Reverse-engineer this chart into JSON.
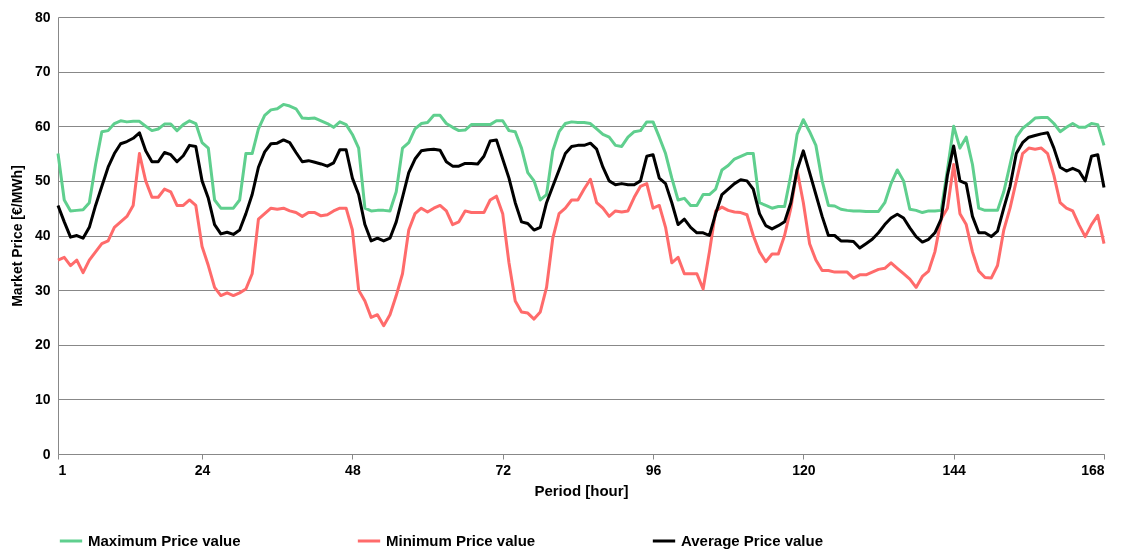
{
  "chart_data": {
    "type": "line",
    "xlabel": "Period [hour]",
    "ylabel": "Market Price [€/MWh]",
    "x": [
      1,
      2,
      3,
      4,
      5,
      6,
      7,
      8,
      9,
      10,
      11,
      12,
      13,
      14,
      15,
      16,
      17,
      18,
      19,
      20,
      21,
      22,
      23,
      24,
      25,
      26,
      27,
      28,
      29,
      30,
      31,
      32,
      33,
      34,
      35,
      36,
      37,
      38,
      39,
      40,
      41,
      42,
      43,
      44,
      45,
      46,
      47,
      48,
      49,
      50,
      51,
      52,
      53,
      54,
      55,
      56,
      57,
      58,
      59,
      60,
      61,
      62,
      63,
      64,
      65,
      66,
      67,
      68,
      69,
      70,
      71,
      72,
      73,
      74,
      75,
      76,
      77,
      78,
      79,
      80,
      81,
      82,
      83,
      84,
      85,
      86,
      87,
      88,
      89,
      90,
      91,
      92,
      93,
      94,
      95,
      96,
      97,
      98,
      99,
      100,
      101,
      102,
      103,
      104,
      105,
      106,
      107,
      108,
      109,
      110,
      111,
      112,
      113,
      114,
      115,
      116,
      117,
      118,
      119,
      120,
      121,
      122,
      123,
      124,
      125,
      126,
      127,
      128,
      129,
      130,
      131,
      132,
      133,
      134,
      135,
      136,
      137,
      138,
      139,
      140,
      141,
      142,
      143,
      144,
      145,
      146,
      147,
      148,
      149,
      150,
      151,
      152,
      153,
      154,
      155,
      156,
      157,
      158,
      159,
      160,
      161,
      162,
      163,
      164,
      165,
      166,
      167,
      168
    ],
    "series": [
      {
        "name": "Maximum Price value",
        "color": "#5fcf8e",
        "values": [
          55,
          46.5,
          44.5,
          44.6,
          44.7,
          46,
          53,
          59,
          59.2,
          60.5,
          61,
          60.8,
          60.9,
          60.9,
          60,
          59.2,
          59.5,
          60.4,
          60.4,
          59.2,
          60.3,
          61,
          60.5,
          57,
          56,
          46.5,
          45,
          45,
          45,
          46.5,
          55,
          55,
          59.5,
          62,
          63,
          63.2,
          64,
          63.7,
          63.2,
          61.5,
          61.4,
          61.5,
          61,
          60.5,
          59.8,
          60.8,
          60.3,
          58.5,
          56,
          45,
          44.5,
          44.6,
          44.6,
          44.5,
          48,
          56,
          57,
          59.5,
          60.5,
          60.7,
          62,
          62,
          60.5,
          59.8,
          59.2,
          59.3,
          60.3,
          60.3,
          60.3,
          60.3,
          61,
          61,
          59.2,
          59,
          56,
          51.5,
          50,
          46.5,
          47.5,
          55.5,
          59,
          60.5,
          60.8,
          60.7,
          60.7,
          60.5,
          59.5,
          58.5,
          58,
          56.5,
          56.3,
          58,
          59,
          59.2,
          60.8,
          60.8,
          58,
          55,
          50.5,
          46.5,
          46.8,
          45.5,
          45.5,
          47.5,
          47.5,
          48.5,
          52,
          52.8,
          54,
          54.5,
          55,
          55,
          46,
          45.5,
          45,
          45.3,
          45.3,
          51,
          58.5,
          61.2,
          59,
          56.5,
          50,
          45.5,
          45.4,
          44.8,
          44.6,
          44.5,
          44.5,
          44.4,
          44.4,
          44.4,
          46,
          49.5,
          52,
          50,
          44.8,
          44.6,
          44.2,
          44.5,
          44.5,
          44.6,
          52,
          60,
          56,
          58,
          53,
          45,
          44.6,
          44.6,
          44.6,
          48,
          53,
          58,
          59.6,
          60.5,
          61.5,
          61.6,
          61.6,
          60.5,
          59,
          59.8,
          60.5,
          59.8,
          59.8,
          60.5,
          60.3,
          56.5
        ]
      },
      {
        "name": "Minimum Price value",
        "color": "#ff6b6b",
        "values": [
          35.5,
          36,
          34.5,
          35.5,
          33.2,
          35.5,
          37,
          38.5,
          39,
          41.5,
          42.5,
          43.5,
          45.5,
          55,
          50,
          47,
          47,
          48.5,
          48,
          45.5,
          45.5,
          46.5,
          45.5,
          38,
          34.5,
          30.5,
          29,
          29.5,
          29,
          29.5,
          30.2,
          33,
          43,
          44,
          45,
          44.8,
          45,
          44.5,
          44.2,
          43.5,
          44.2,
          44.2,
          43.6,
          43.8,
          44.5,
          45,
          45,
          41,
          30,
          28,
          25,
          25.5,
          23.5,
          25.5,
          29,
          33,
          41,
          44,
          45,
          44.3,
          45,
          45.5,
          44.5,
          42,
          42.5,
          44.5,
          44.2,
          44.2,
          44.2,
          46.5,
          47.2,
          44,
          35,
          28,
          26,
          25.8,
          24.7,
          26,
          30.5,
          39.5,
          44,
          45,
          46.5,
          46.5,
          48.5,
          50.3,
          46,
          45,
          43.5,
          44.5,
          44.3,
          44.5,
          47,
          49,
          49.5,
          45,
          45.5,
          41.5,
          35,
          36,
          33,
          33,
          33,
          30.2,
          37,
          44.5,
          45.2,
          44.6,
          44.3,
          44.2,
          43.8,
          40,
          37,
          35.2,
          36.6,
          36.6,
          40,
          45,
          52,
          46,
          38.5,
          35.5,
          33.6,
          33.6,
          33.3,
          33.3,
          33.3,
          32.2,
          32.8,
          32.8,
          33.3,
          33.8,
          34,
          35,
          34,
          33,
          32,
          30.5,
          32.5,
          33.5,
          37,
          43,
          45,
          53,
          44,
          42,
          37,
          33.5,
          32.3,
          32.2,
          34.5,
          41,
          45,
          50,
          55,
          56,
          55.8,
          56,
          55,
          51,
          46,
          45,
          44.5,
          42,
          39.8,
          42,
          43.7,
          38.5
        ]
      },
      {
        "name": "Average Price value",
        "color": "#000000",
        "values": [
          45.5,
          42.5,
          39.7,
          40,
          39.5,
          41.5,
          45.5,
          49,
          52.5,
          55,
          56.8,
          57.2,
          57.8,
          58.8,
          55.5,
          53.5,
          53.5,
          55.2,
          54.8,
          53.5,
          54.6,
          56.5,
          56.3,
          50,
          46.8,
          42,
          40.3,
          40.6,
          40.2,
          41,
          44,
          47.5,
          52.5,
          55.3,
          56.8,
          56.9,
          57.5,
          57,
          55.2,
          53.5,
          53.7,
          53.4,
          53.1,
          52.7,
          53.3,
          55.7,
          55.7,
          50.5,
          47.5,
          42,
          39,
          39.5,
          39,
          39.5,
          42.5,
          47,
          51.5,
          54,
          55.5,
          55.7,
          55.8,
          55.6,
          53.5,
          52.7,
          52.7,
          53.2,
          53.2,
          53.1,
          54.5,
          57.3,
          57.5,
          54,
          50.5,
          46,
          42.5,
          42.2,
          41,
          41.5,
          46,
          49,
          52,
          55,
          56.3,
          56.5,
          56.5,
          56.9,
          55.8,
          52.5,
          50,
          49.3,
          49.5,
          49.3,
          49.3,
          50,
          54.5,
          54.8,
          50.5,
          49.5,
          46,
          42,
          43,
          41.5,
          40.5,
          40.5,
          40,
          44,
          47.5,
          48.5,
          49.5,
          50.2,
          50,
          48.5,
          44,
          41.8,
          41.2,
          41.8,
          42.5,
          46,
          52,
          55.5,
          51.5,
          47.5,
          43.5,
          40,
          40,
          39,
          39,
          38.9,
          37.7,
          38.5,
          39.3,
          40.5,
          42,
          43.2,
          43.9,
          43.2,
          41.4,
          39.8,
          38.8,
          39.3,
          40.5,
          43,
          51,
          56.4,
          50,
          49.5,
          43.5,
          40.5,
          40.5,
          39.8,
          40.8,
          45,
          49,
          55,
          57,
          58,
          58.3,
          58.6,
          58.8,
          56,
          52.5,
          51.8,
          52.3,
          51.8,
          50,
          54.5,
          54.8,
          48.8
        ]
      }
    ],
    "xlim": [
      1,
      168
    ],
    "xticks": [
      1,
      24,
      48,
      72,
      96,
      120,
      144,
      168
    ],
    "ylim": [
      0,
      80
    ],
    "yticks": [
      0,
      10,
      20,
      30,
      40,
      50,
      60,
      70,
      80
    ],
    "grid": "y",
    "legend": "bottom",
    "line_style": "solid",
    "marker": "none"
  }
}
